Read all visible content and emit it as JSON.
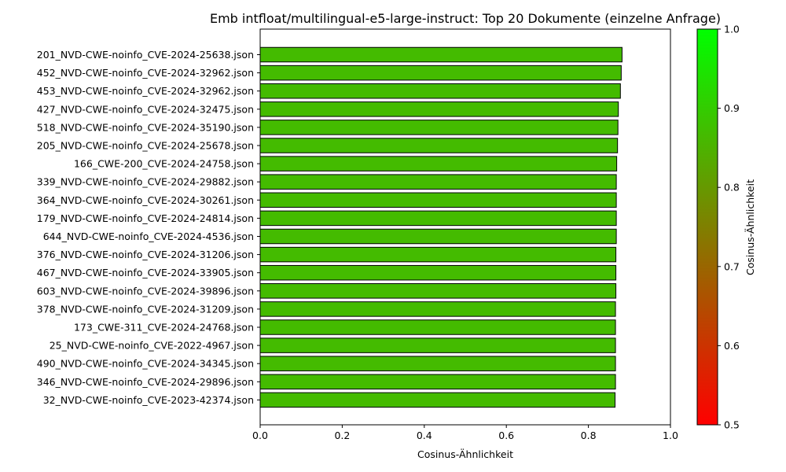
{
  "chart_data": {
    "type": "bar",
    "orientation": "horizontal",
    "title": "Emb intfloat/multilingual-e5-large-instruct: Top 20 Dokumente (einzelne Anfrage)",
    "xlabel": "Cosinus-Ähnlichkeit",
    "ylabel": "",
    "xlim": [
      0,
      1.0
    ],
    "xticks": [
      "0.0",
      "0.2",
      "0.4",
      "0.6",
      "0.8",
      "1.0"
    ],
    "grid": false,
    "categories": [
      "201_NVD-CWE-noinfo_CVE-2024-25638.json",
      "452_NVD-CWE-noinfo_CVE-2024-32962.json",
      "453_NVD-CWE-noinfo_CVE-2024-32962.json",
      "427_NVD-CWE-noinfo_CVE-2024-32475.json",
      "518_NVD-CWE-noinfo_CVE-2024-35190.json",
      "205_NVD-CWE-noinfo_CVE-2024-25678.json",
      "166_CWE-200_CVE-2024-24758.json",
      "339_NVD-CWE-noinfo_CVE-2024-29882.json",
      "364_NVD-CWE-noinfo_CVE-2024-30261.json",
      "179_NVD-CWE-noinfo_CVE-2024-24814.json",
      "644_NVD-CWE-noinfo_CVE-2024-4536.json",
      "376_NVD-CWE-noinfo_CVE-2024-31206.json",
      "467_NVD-CWE-noinfo_CVE-2024-33905.json",
      "603_NVD-CWE-noinfo_CVE-2024-39896.json",
      "378_NVD-CWE-noinfo_CVE-2024-31209.json",
      "173_CWE-311_CVE-2024-24768.json",
      "25_NVD-CWE-noinfo_CVE-2022-4967.json",
      "490_NVD-CWE-noinfo_CVE-2024-34345.json",
      "346_NVD-CWE-noinfo_CVE-2024-29896.json",
      "32_NVD-CWE-noinfo_CVE-2023-42374.json"
    ],
    "values": [
      0.882,
      0.88,
      0.878,
      0.873,
      0.872,
      0.871,
      0.869,
      0.868,
      0.868,
      0.868,
      0.868,
      0.867,
      0.867,
      0.867,
      0.866,
      0.866,
      0.866,
      0.866,
      0.866,
      0.865
    ],
    "bar_color": "#44bb00",
    "bar_edge_color": "#000000",
    "colorbar": {
      "label": "Cosinus-Ähnlichkeit",
      "range": [
        0.5,
        1.0
      ],
      "ticks": [
        "0.5",
        "0.6",
        "0.7",
        "0.8",
        "0.9",
        "1.0"
      ],
      "color_low": "#ff0000",
      "color_high": "#00ff00"
    }
  }
}
